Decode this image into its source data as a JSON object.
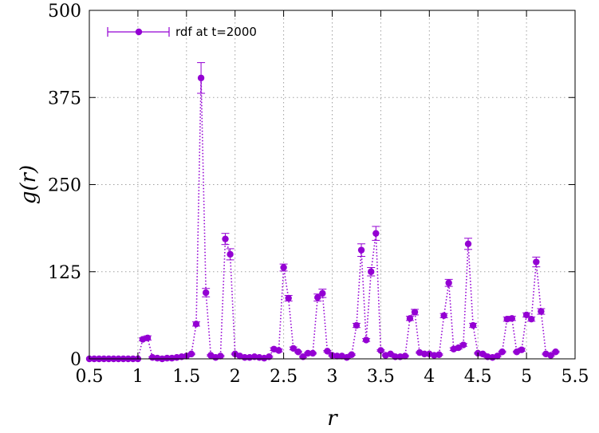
{
  "chart_data": {
    "type": "scatter",
    "xlabel": "r",
    "ylabel": "g(r)",
    "xlim": [
      0.5,
      5.5
    ],
    "ylim": [
      0,
      500
    ],
    "xticks": [
      "0.5",
      "1",
      "1.5",
      "2",
      "2.5",
      "3",
      "3.5",
      "4",
      "4.5",
      "5",
      "5.5"
    ],
    "yticks": [
      "0",
      "125",
      "250",
      "375",
      "500"
    ],
    "grid": true,
    "legend_position": "top-left",
    "color": "#9400D3",
    "series": [
      {
        "name": "rdf at t=2000",
        "style": "points with error bars, dotted connecting line",
        "points": [
          [
            0.5,
            0,
            0
          ],
          [
            0.55,
            0,
            0
          ],
          [
            0.6,
            0,
            0
          ],
          [
            0.65,
            0,
            0
          ],
          [
            0.7,
            0,
            0
          ],
          [
            0.75,
            0,
            0
          ],
          [
            0.8,
            0,
            0
          ],
          [
            0.85,
            0,
            0
          ],
          [
            0.9,
            0,
            0
          ],
          [
            0.95,
            0,
            0
          ],
          [
            1.0,
            0,
            0
          ],
          [
            1.05,
            28,
            2
          ],
          [
            1.1,
            30,
            3
          ],
          [
            1.15,
            2,
            1
          ],
          [
            1.2,
            1,
            1
          ],
          [
            1.25,
            0,
            1
          ],
          [
            1.3,
            1,
            1
          ],
          [
            1.35,
            1,
            1
          ],
          [
            1.4,
            2,
            1
          ],
          [
            1.45,
            3,
            1
          ],
          [
            1.5,
            4,
            1
          ],
          [
            1.55,
            7,
            1
          ],
          [
            1.6,
            50,
            3
          ],
          [
            1.65,
            403,
            22
          ],
          [
            1.7,
            95,
            6
          ],
          [
            1.75,
            5,
            1
          ],
          [
            1.8,
            2,
            1
          ],
          [
            1.85,
            4,
            1
          ],
          [
            1.9,
            172,
            8
          ],
          [
            1.95,
            150,
            8
          ],
          [
            2.0,
            7,
            1
          ],
          [
            2.05,
            4,
            1
          ],
          [
            2.1,
            2,
            1
          ],
          [
            2.15,
            2,
            1
          ],
          [
            2.2,
            3,
            1
          ],
          [
            2.25,
            2,
            1
          ],
          [
            2.3,
            1,
            1
          ],
          [
            2.35,
            3,
            1
          ],
          [
            2.4,
            14,
            2
          ],
          [
            2.45,
            12,
            2
          ],
          [
            2.5,
            131,
            5
          ],
          [
            2.55,
            87,
            4
          ],
          [
            2.6,
            15,
            2
          ],
          [
            2.65,
            10,
            1
          ],
          [
            2.7,
            3,
            1
          ],
          [
            2.75,
            8,
            1
          ],
          [
            2.8,
            8,
            1
          ],
          [
            2.85,
            88,
            5
          ],
          [
            2.9,
            94,
            6
          ],
          [
            2.95,
            11,
            1
          ],
          [
            3.0,
            5,
            1
          ],
          [
            3.05,
            4,
            1
          ],
          [
            3.1,
            4,
            1
          ],
          [
            3.15,
            2,
            1
          ],
          [
            3.2,
            6,
            1
          ],
          [
            3.25,
            48,
            3
          ],
          [
            3.3,
            156,
            9
          ],
          [
            3.35,
            27,
            2
          ],
          [
            3.4,
            125,
            6
          ],
          [
            3.45,
            180,
            10
          ],
          [
            3.5,
            12,
            1
          ],
          [
            3.55,
            5,
            1
          ],
          [
            3.6,
            7,
            1
          ],
          [
            3.65,
            3,
            1
          ],
          [
            3.7,
            3,
            1
          ],
          [
            3.75,
            4,
            1
          ],
          [
            3.8,
            58,
            3
          ],
          [
            3.85,
            67,
            4
          ],
          [
            3.9,
            9,
            1
          ],
          [
            3.95,
            7,
            1
          ],
          [
            4.0,
            7,
            1
          ],
          [
            4.05,
            5,
            1
          ],
          [
            4.1,
            6,
            1
          ],
          [
            4.15,
            62,
            3
          ],
          [
            4.2,
            109,
            5
          ],
          [
            4.25,
            14,
            2
          ],
          [
            4.3,
            16,
            2
          ],
          [
            4.35,
            20,
            2
          ],
          [
            4.4,
            165,
            8
          ],
          [
            4.45,
            48,
            3
          ],
          [
            4.5,
            8,
            1
          ],
          [
            4.55,
            7,
            1
          ],
          [
            4.6,
            3,
            1
          ],
          [
            4.65,
            2,
            1
          ],
          [
            4.7,
            4,
            1
          ],
          [
            4.75,
            10,
            1
          ],
          [
            4.8,
            57,
            3
          ],
          [
            4.85,
            58,
            3
          ],
          [
            4.9,
            10,
            1
          ],
          [
            4.95,
            13,
            2
          ],
          [
            5.0,
            63,
            3
          ],
          [
            5.05,
            57,
            3
          ],
          [
            5.1,
            139,
            7
          ],
          [
            5.15,
            68,
            4
          ],
          [
            5.2,
            7,
            1
          ],
          [
            5.25,
            5,
            1
          ],
          [
            5.3,
            10,
            1
          ]
        ]
      }
    ]
  }
}
